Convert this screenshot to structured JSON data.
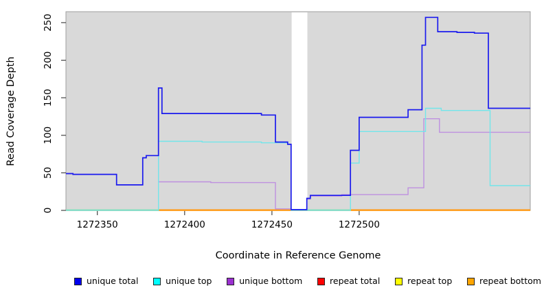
{
  "chart_data": {
    "type": "line",
    "title": "",
    "xlabel": "Coordinate in Reference Genome",
    "ylabel": "Read Coverage Depth",
    "xlim": [
      1272332,
      1272598
    ],
    "ylim": [
      0,
      264.6
    ],
    "x_ticks": [
      1272350,
      1272400,
      1272450,
      1272500
    ],
    "y_ticks": [
      0,
      50,
      100,
      150,
      200,
      250
    ],
    "grid": false,
    "plot_bg": "#d9d9d9",
    "gap_region": {
      "x_start": 1272461.3,
      "x_end": 1272470.3,
      "color": "#ffffff"
    },
    "step_mode": "after",
    "legend_position": "bottom",
    "draw_order": [
      "repeat total",
      "repeat top",
      "repeat bottom",
      "__baseline_overlay__",
      "unique bottom",
      "unique top",
      "unique total"
    ],
    "series": [
      {
        "name": "unique total",
        "color": "#1a1aee",
        "width": 1.7,
        "points": [
          [
            1272332,
            49
          ],
          [
            1272336,
            48
          ],
          [
            1272361,
            34
          ],
          [
            1272376,
            70
          ],
          [
            1272378,
            73
          ],
          [
            1272385,
            163
          ],
          [
            1272387,
            129
          ],
          [
            1272444,
            127
          ],
          [
            1272452,
            91
          ],
          [
            1272459,
            88
          ],
          [
            1272461,
            1
          ],
          [
            1272470,
            16
          ],
          [
            1272472,
            20
          ],
          [
            1272495,
            80
          ],
          [
            1272500,
            124
          ],
          [
            1272528,
            134
          ],
          [
            1272536,
            220
          ],
          [
            1272538,
            257
          ],
          [
            1272545,
            238
          ],
          [
            1272556,
            237
          ],
          [
            1272566,
            236
          ],
          [
            1272574,
            136
          ],
          [
            1272598,
            136
          ]
        ]
      },
      {
        "name": "unique top",
        "color": "#72e6ea",
        "width": 1.4,
        "points": [
          [
            1272332,
            0
          ],
          [
            1272385,
            92
          ],
          [
            1272410,
            91
          ],
          [
            1272444,
            90
          ],
          [
            1272459,
            88
          ],
          [
            1272461,
            0
          ],
          [
            1272495,
            63
          ],
          [
            1272500,
            105
          ],
          [
            1272538,
            136
          ],
          [
            1272547,
            133
          ],
          [
            1272575,
            33
          ],
          [
            1272598,
            33
          ]
        ]
      },
      {
        "name": "unique bottom",
        "color": "#be90e0",
        "width": 1.4,
        "points": [
          [
            1272332,
            49
          ],
          [
            1272336,
            48
          ],
          [
            1272361,
            34
          ],
          [
            1272376,
            70
          ],
          [
            1272378,
            73
          ],
          [
            1272385,
            38
          ],
          [
            1272415,
            37
          ],
          [
            1272452,
            2
          ],
          [
            1272461,
            1
          ],
          [
            1272470,
            15
          ],
          [
            1272472,
            19
          ],
          [
            1272490,
            21
          ],
          [
            1272528,
            30
          ],
          [
            1272537,
            122
          ],
          [
            1272546,
            104
          ],
          [
            1272598,
            104
          ]
        ]
      },
      {
        "name": "repeat total",
        "color": "#dd2222",
        "width": 1.2,
        "points": [
          [
            1272332,
            0
          ],
          [
            1272598,
            0
          ]
        ]
      },
      {
        "name": "repeat top",
        "color": "#eeee22",
        "width": 1.2,
        "points": [
          [
            1272332,
            0
          ],
          [
            1272598,
            0
          ]
        ]
      },
      {
        "name": "repeat bottom",
        "color": "#ff9d1e",
        "width": 1.7,
        "points": [
          [
            1272332,
            0
          ],
          [
            1272598,
            0
          ]
        ]
      }
    ],
    "baseline_overlay": [
      {
        "color": "#9ddcab",
        "x_start": 1272332,
        "x_end": 1272385
      },
      {
        "color": "#ff9d1e",
        "x_start": 1272385,
        "x_end": 1272461
      },
      {
        "color": "#9ddcab",
        "x_start": 1272470,
        "x_end": 1272495
      },
      {
        "color": "#ff9d1e",
        "x_start": 1272495,
        "x_end": 1272598
      }
    ]
  },
  "legend": {
    "items": [
      {
        "label": "unique total",
        "color": "#0000ee"
      },
      {
        "label": "unique top",
        "color": "#00ffff"
      },
      {
        "label": "unique bottom",
        "color": "#9b30d0"
      },
      {
        "label": "repeat total",
        "color": "#ff0000"
      },
      {
        "label": "repeat top",
        "color": "#ffff00"
      },
      {
        "label": "repeat bottom",
        "color": "#ffa500"
      }
    ]
  }
}
